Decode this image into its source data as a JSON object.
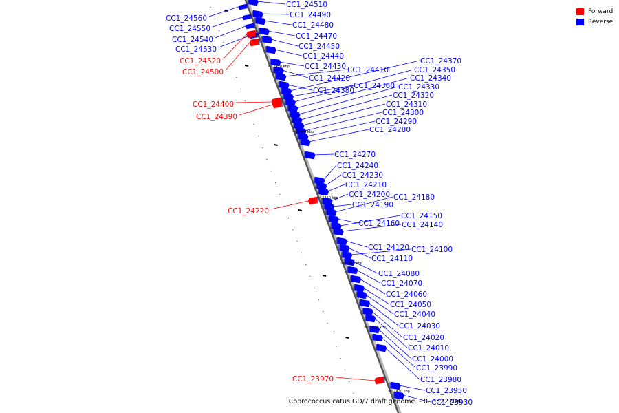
{
  "legend": {
    "forward_label": "Forward",
    "reverse_label": "Reverse",
    "forward_color": "#ff0000",
    "reverse_color": "#0000ff"
  },
  "caption": "Coprococcus catus GD/7 draft genome. - 0..3522704",
  "ticks": [
    "2470 kbp",
    "2460 kbp",
    "2450 kbp",
    "2440 kbp",
    "2430 kbp",
    "2420 kbp"
  ],
  "genes_reverse": [
    "CC1_24510",
    "CC1_24490",
    "CC1_24480",
    "CC1_24470",
    "CC1_24450",
    "CC1_24440",
    "CC1_24430",
    "CC1_24420",
    "CC1_24410",
    "CC1_24380",
    "CC1_24370",
    "CC1_24360",
    "CC1_24350",
    "CC1_24340",
    "CC1_24330",
    "CC1_24320",
    "CC1_24310",
    "CC1_24300",
    "CC1_24290",
    "CC1_24280",
    "CC1_24270",
    "CC1_24240",
    "CC1_24230",
    "CC1_24210",
    "CC1_24200",
    "CC1_24190",
    "CC1_24180",
    "CC1_24160",
    "CC1_24150",
    "CC1_24140",
    "CC1_24120",
    "CC1_24110",
    "CC1_24100",
    "CC1_24080",
    "CC1_24070",
    "CC1_24060",
    "CC1_24050",
    "CC1_24040",
    "CC1_24030",
    "CC1_24020",
    "CC1_24010",
    "CC1_24000",
    "CC1_23990",
    "CC1_23980",
    "CC1_23950",
    "CC1_23930"
  ],
  "genes_left_blue": [
    "CC1_24560",
    "CC1_24550",
    "CC1_24540",
    "CC1_24530"
  ],
  "genes_forward": [
    "CC1_24520",
    "CC1_24500",
    "CC1_24400",
    "CC1_24390",
    "CC1_24220",
    "CC1_23970"
  ]
}
